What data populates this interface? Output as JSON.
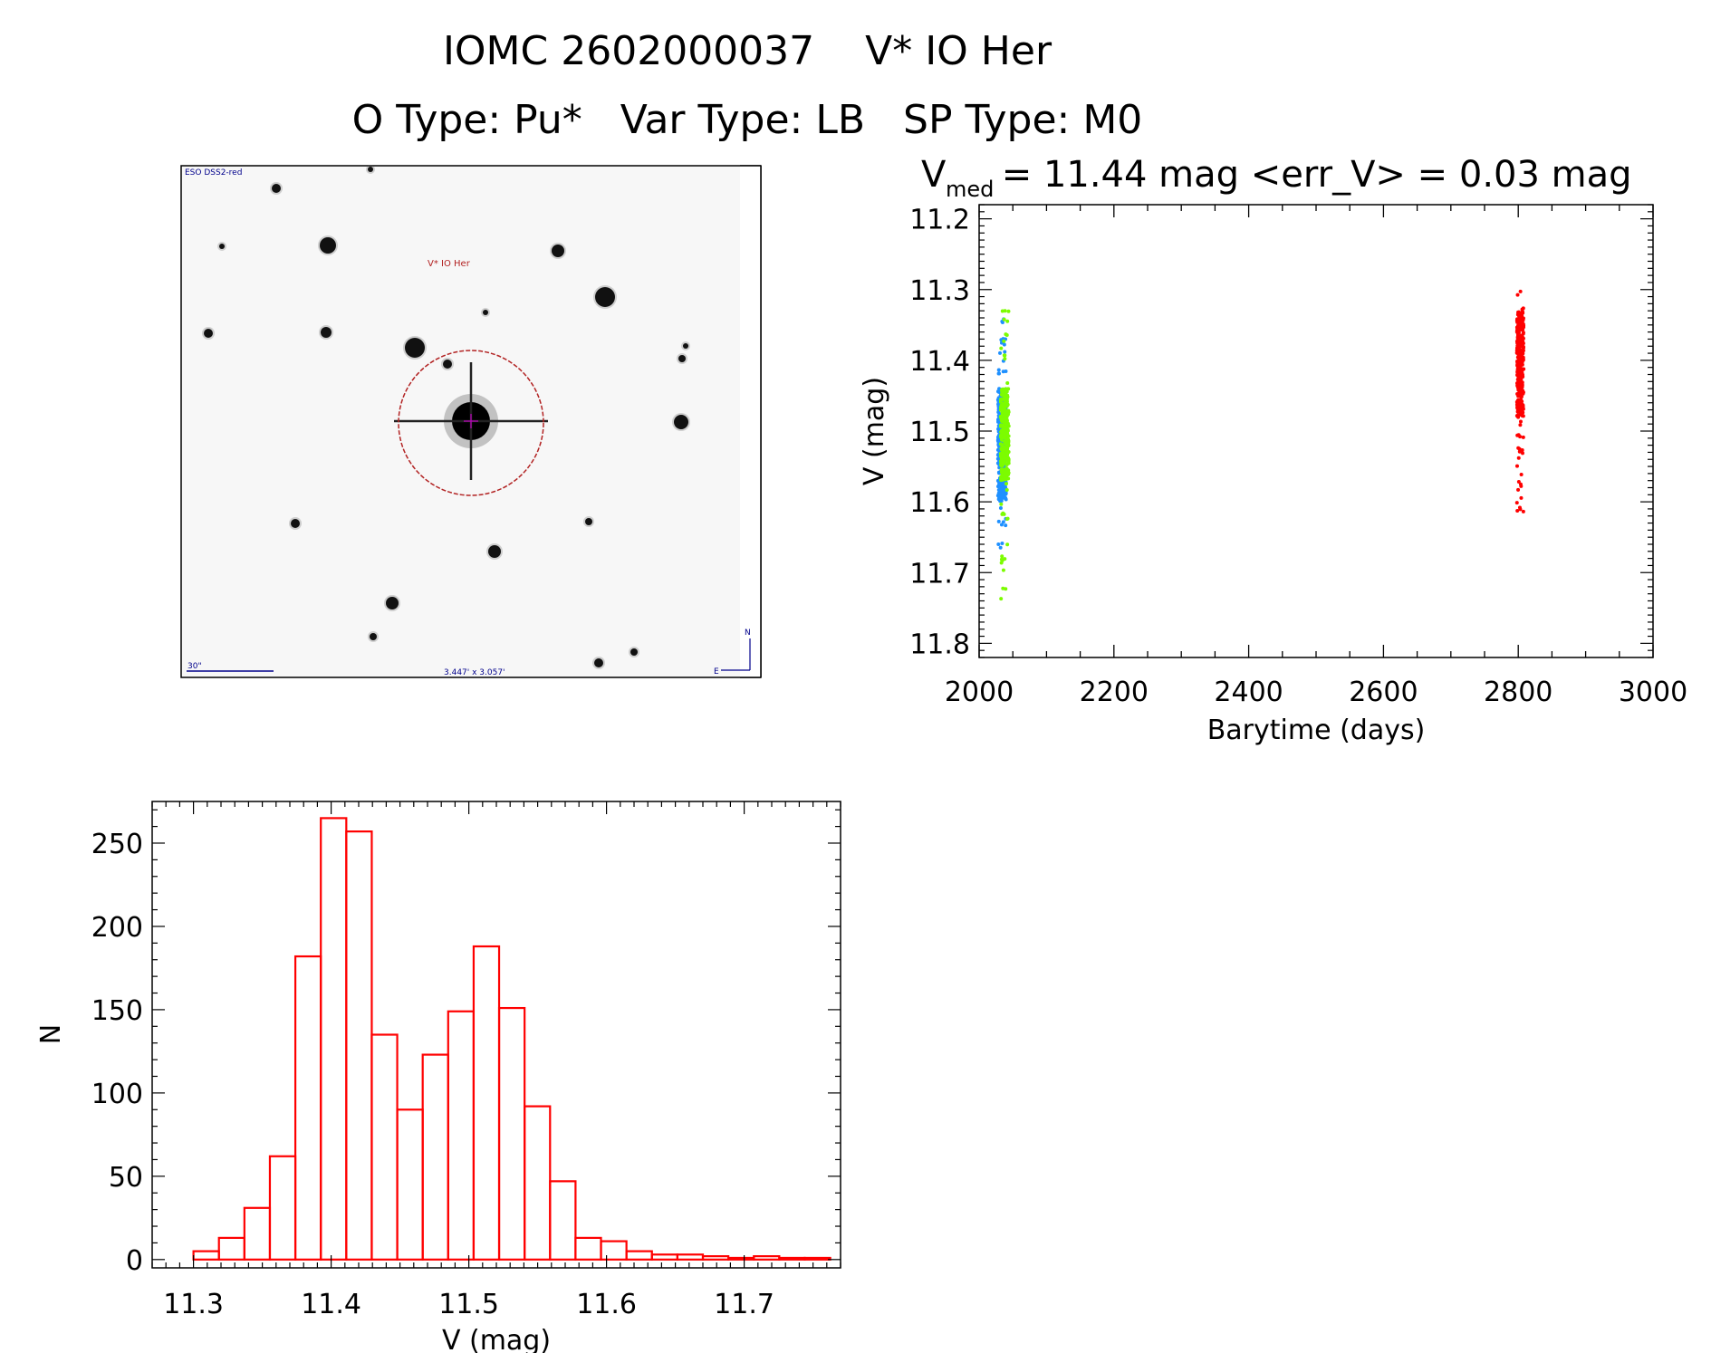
{
  "header": {
    "title": "IOMC 2602000037    V* IO Her",
    "subtitle": "O Type: Pu*   Var Type: LB   SP Type: M0"
  },
  "image_panel": {
    "survey_label": "ESO DSS2-red",
    "target_label": "V* IO Her",
    "scale_label": "30\"",
    "fov_label": "3.447' x 3.057'",
    "north_label": "N",
    "east_label": "E"
  },
  "chart_data": [
    {
      "type": "scatter",
      "title_main": "V",
      "title_sub": "med",
      "title_rest": " = 11.44 mag <err_V> = 0.03 mag",
      "xlabel": "Barytime (days)",
      "ylabel": "V (mag)",
      "xlim": [
        2000,
        3000
      ],
      "ylim": [
        11.82,
        11.18
      ],
      "xticks": [
        "2000",
        "2200",
        "2400",
        "2600",
        "2800",
        "3000"
      ],
      "yticks": [
        "11.2",
        "11.3",
        "11.4",
        "11.5",
        "11.6",
        "11.7",
        "11.8"
      ],
      "series": [
        {
          "name": "blue",
          "color": "#1e90ff",
          "x_range": [
            2028,
            2040
          ],
          "y_range": [
            11.34,
            11.67
          ],
          "core": [
            11.44,
            11.6
          ]
        },
        {
          "name": "green",
          "color": "#7cfc00",
          "x_range": [
            2032,
            2044
          ],
          "y_range": [
            11.33,
            11.74
          ],
          "core": [
            11.44,
            11.57
          ]
        },
        {
          "name": "red",
          "color": "#ff0000",
          "x_range": [
            2798,
            2808
          ],
          "y_range": [
            11.3,
            11.62
          ],
          "core": [
            11.33,
            11.48
          ]
        }
      ]
    },
    {
      "type": "bar",
      "title": "",
      "xlabel": "V (mag)",
      "ylabel": "N",
      "xlim": [
        11.27,
        11.77
      ],
      "ylim": [
        -5,
        275
      ],
      "xticks": [
        "11.3",
        "11.4",
        "11.5",
        "11.6",
        "11.7"
      ],
      "yticks": [
        "0",
        "50",
        "100",
        "150",
        "200",
        "250"
      ],
      "bin_start": 11.3,
      "bin_width": 0.0185,
      "color": "#ff0000",
      "values": [
        5,
        13,
        31,
        62,
        182,
        265,
        257,
        135,
        90,
        123,
        149,
        188,
        151,
        92,
        47,
        13,
        11,
        5,
        3,
        3,
        2,
        1,
        2,
        1,
        1
      ]
    }
  ]
}
